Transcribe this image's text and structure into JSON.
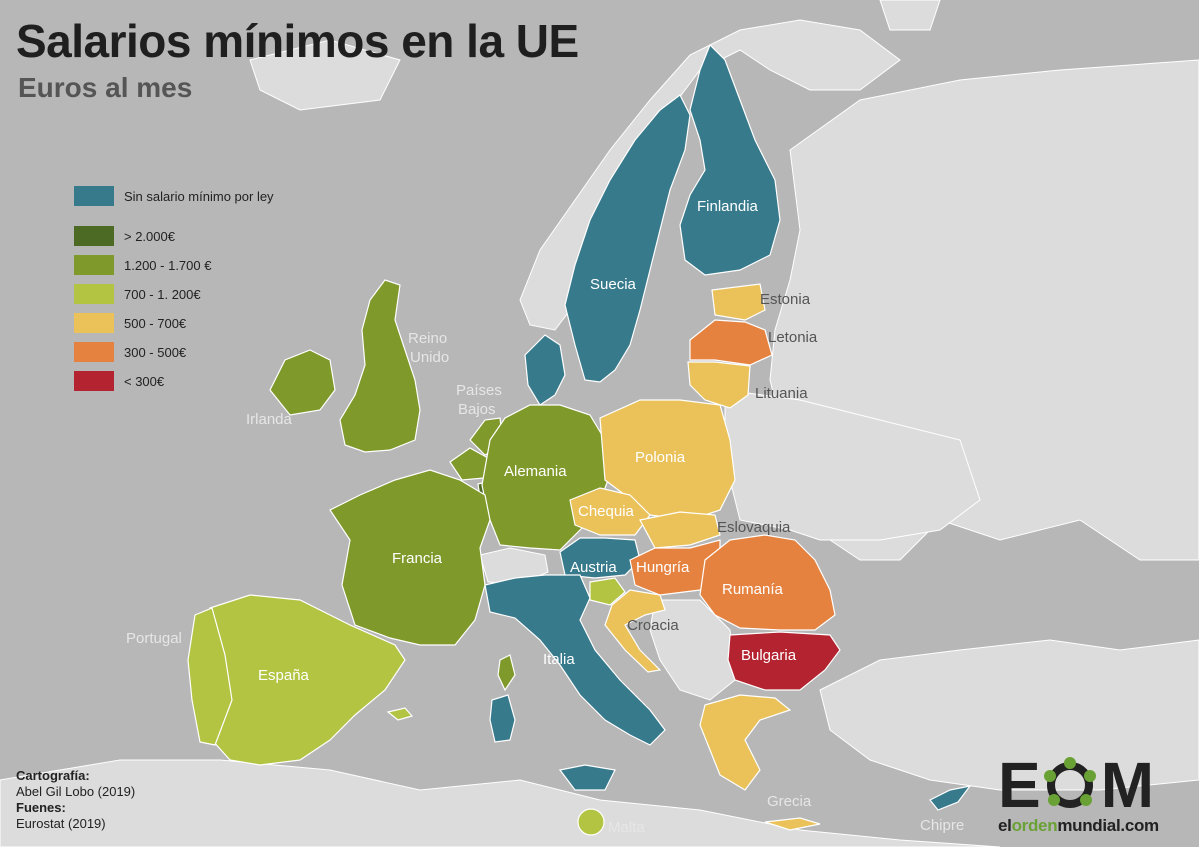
{
  "title": "Salarios mínimos en la UE",
  "subtitle": "Euros al mes",
  "legend": [
    {
      "label": "Sin salario mínimo por ley",
      "color": "#377a8c"
    },
    {
      "label": "> 2.000€",
      "color": "#4d6a24"
    },
    {
      "label": "1.200 - 1.700 €",
      "color": "#7f992b"
    },
    {
      "label": "700 - 1. 200€",
      "color": "#b3c442"
    },
    {
      "label": "500 - 700€",
      "color": "#ebc25a"
    },
    {
      "label": "300 - 500€",
      "color": "#e6823f"
    },
    {
      "label": "< 300€",
      "color": "#b32430"
    }
  ],
  "countries": {
    "finlandia": "Finlandia",
    "suecia": "Suecia",
    "estonia": "Estonia",
    "letonia": "Letonia",
    "lituania": "Lituania",
    "reino_unido_1": "Reino",
    "reino_unido_2": "Unido",
    "irlanda": "Irlanda",
    "paises_bajos_1": "Países",
    "paises_bajos_2": "Bajos",
    "alemania": "Alemania",
    "polonia": "Polonia",
    "chequia": "Chequia",
    "eslovaquia": "Eslovaquia",
    "francia": "Francia",
    "austria": "Austria",
    "hungria": "Hungría",
    "rumania": "Rumanía",
    "portugal": "Portugal",
    "espana": "España",
    "croacia": "Croacia",
    "italia": "Italia",
    "bulgaria": "Bulgaria",
    "grecia": "Grecia",
    "malta": "Malta",
    "chipre": "Chipre"
  },
  "credits": {
    "cartografia_head": "Cartografía:",
    "cartografia_value": "Abel Gil Lobo (2019)",
    "fuentes_head": "Fuenes:",
    "fuentes_value": "Eurostat (2019)"
  },
  "logo": {
    "letter_e": "E",
    "letter_m": "M",
    "site_part1": "el",
    "site_part2": "orden",
    "site_part3": "mundial",
    "site_part4": ".com"
  },
  "colors": {
    "sea": "#b7b7b7",
    "land": "#dddddd",
    "no_minimum": "#377a8c",
    "over_2000": "#4d6a24",
    "range_1200_1700": "#7f992b",
    "range_700_1200": "#b3c442",
    "range_500_700": "#ebc25a",
    "range_300_500": "#e6823f",
    "under_300": "#b32430"
  }
}
